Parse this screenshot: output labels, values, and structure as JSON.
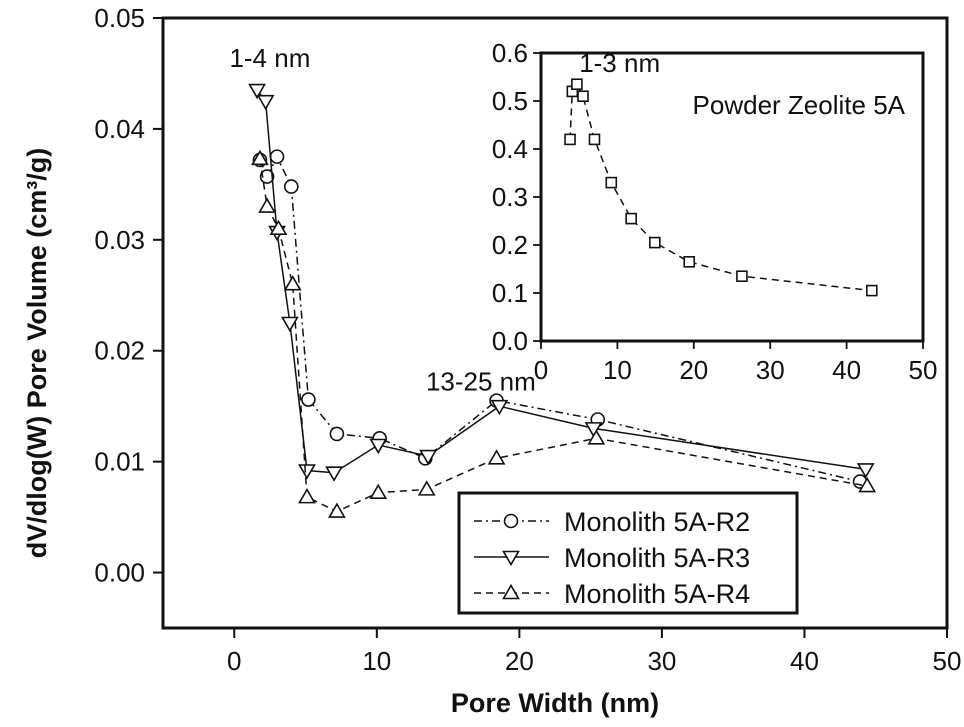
{
  "chart_data": [
    {
      "id": "main",
      "type": "line",
      "xlabel": "Pore Width (nm)",
      "ylabel": "dV/dlog(W) Pore Volume (cm³/g)",
      "xlim": [
        -5,
        50
      ],
      "ylim": [
        -0.005,
        0.05
      ],
      "xticks": [
        0,
        10,
        20,
        30,
        40,
        50
      ],
      "xtick_labels": [
        "0",
        "10",
        "20",
        "30",
        "40",
        "50"
      ],
      "yticks": [
        0.0,
        0.01,
        0.02,
        0.03,
        0.04,
        0.05
      ],
      "ytick_labels": [
        "0.00",
        "0.01",
        "0.02",
        "0.03",
        "0.04",
        "0.05"
      ],
      "grid": false,
      "legend": "bottom-right",
      "annotations": [
        {
          "text": "1-4 nm",
          "x": 2.5,
          "y": 0.0456
        },
        {
          "text": "13-25 nm",
          "x": 17.3,
          "y": 0.0164
        }
      ],
      "series": [
        {
          "name": "Monolith 5A-R2",
          "marker": "circle",
          "dash": "dashdot",
          "x": [
            1.8,
            2.3,
            3.0,
            4.0,
            5.2,
            7.2,
            10.2,
            13.4,
            18.4,
            25.5,
            43.9
          ],
          "y": [
            0.0372,
            0.0357,
            0.0375,
            0.0348,
            0.0156,
            0.0125,
            0.0121,
            0.0103,
            0.0155,
            0.0138,
            0.0082
          ]
        },
        {
          "name": "Monolith 5A-R3",
          "marker": "triangle-down",
          "dash": "solid",
          "x": [
            1.6,
            2.2,
            3.0,
            3.9,
            5.1,
            7.0,
            10.1,
            13.6,
            18.6,
            25.2,
            44.3
          ],
          "y": [
            0.0435,
            0.0425,
            0.0307,
            0.0225,
            0.0092,
            0.009,
            0.0115,
            0.0105,
            0.015,
            0.013,
            0.0093
          ]
        },
        {
          "name": "Monolith 5A-R4",
          "marker": "triangle-up",
          "dash": "dashed",
          "x": [
            1.8,
            2.3,
            3.1,
            4.1,
            5.1,
            7.2,
            10.1,
            13.5,
            18.4,
            25.4,
            44.4
          ],
          "y": [
            0.0373,
            0.033,
            0.031,
            0.026,
            0.0068,
            0.0055,
            0.0072,
            0.0075,
            0.0103,
            0.0121,
            0.0078
          ]
        }
      ]
    },
    {
      "id": "inset",
      "type": "line",
      "xlabel": "",
      "ylabel": "",
      "xlim": [
        0,
        50
      ],
      "ylim": [
        0,
        0.6
      ],
      "xticks": [
        0,
        10,
        20,
        30,
        40,
        50
      ],
      "xtick_labels": [
        "0",
        "10",
        "20",
        "30",
        "40",
        "50"
      ],
      "yticks": [
        0.0,
        0.1,
        0.2,
        0.3,
        0.4,
        0.5,
        0.6
      ],
      "ytick_labels": [
        "0.0",
        "0.1",
        "0.2",
        "0.3",
        "0.4",
        "0.5",
        "0.6"
      ],
      "grid": false,
      "title": "Powder Zeolite 5A",
      "annotations": [
        {
          "text": "1-3 nm",
          "x": 5.0,
          "y": 0.56
        }
      ],
      "series": [
        {
          "name": "Powder Zeolite 5A",
          "marker": "square",
          "dash": "dashed",
          "x": [
            3.8,
            4.1,
            4.7,
            5.5,
            7.0,
            9.2,
            11.8,
            14.9,
            19.4,
            26.3,
            43.3
          ],
          "y": [
            0.42,
            0.52,
            0.535,
            0.51,
            0.42,
            0.33,
            0.255,
            0.205,
            0.165,
            0.135,
            0.105
          ]
        }
      ]
    }
  ]
}
